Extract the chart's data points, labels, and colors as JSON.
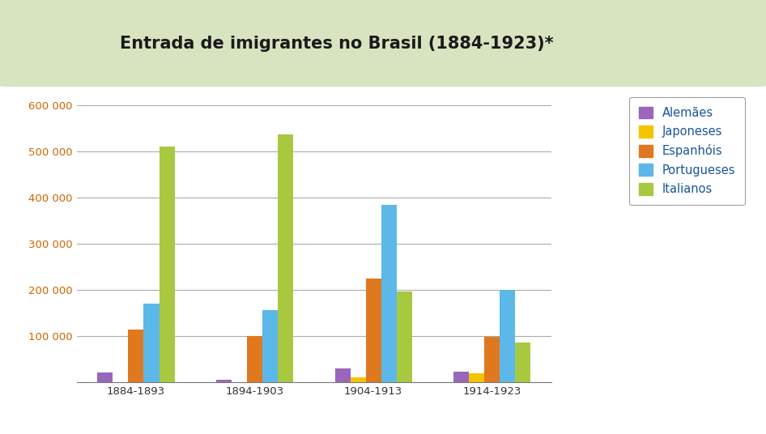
{
  "title": "Entrada de imigrantes no Brasil (1884-1923)*",
  "categories": [
    "1884-1893",
    "1894-1903",
    "1904-1913",
    "1914-1923"
  ],
  "series": {
    "Alemães": [
      20000,
      5000,
      30000,
      22000
    ],
    "Japoneses": [
      0,
      0,
      10000,
      18000
    ],
    "Espanhóis": [
      113000,
      100000,
      224000,
      97000
    ],
    "Portugueses": [
      170000,
      155000,
      384000,
      200000
    ],
    "Italianos": [
      510000,
      537000,
      196000,
      86000
    ]
  },
  "colors": {
    "Alemães": "#9966BB",
    "Japoneses": "#F5C400",
    "Espanhóis": "#E07820",
    "Portugueses": "#5BB8E8",
    "Italianos": "#A8C840"
  },
  "ylim": [
    0,
    630000
  ],
  "yticks": [
    0,
    100000,
    200000,
    300000,
    400000,
    500000,
    600000
  ],
  "ytick_labels": [
    "",
    "100 000",
    "200 000",
    "300 000",
    "400 000",
    "500 000",
    "600 000"
  ],
  "legend_order": [
    "Alemães",
    "Japoneses",
    "Espanhóis",
    "Portugueses",
    "Italianos"
  ],
  "bg_outer": "#D8E4C0",
  "bg_inner": "#FFFFFF",
  "title_fontsize": 15,
  "axis_fontsize": 9.5,
  "legend_fontsize": 10.5,
  "title_color": "#1A1A1A",
  "tick_color": "#CC6600"
}
